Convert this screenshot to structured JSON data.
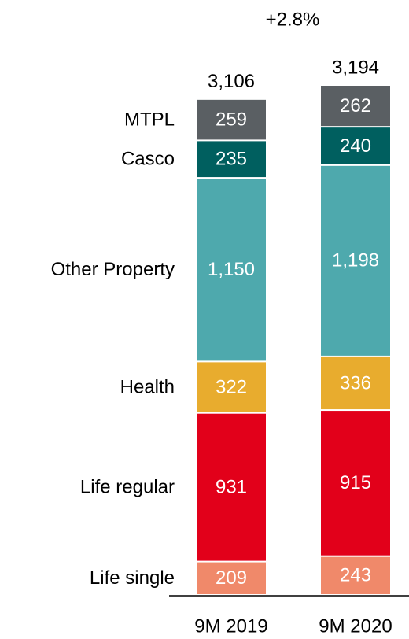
{
  "chart_data": {
    "type": "stacked_bar",
    "annotation": "+2.8%",
    "categories": [
      "9M 2019",
      "9M 2020"
    ],
    "series": [
      {
        "name": "Life single",
        "color": "#f0896a",
        "values": [
          209,
          243
        ]
      },
      {
        "name": "Life regular",
        "color": "#e2001a",
        "values": [
          931,
          915
        ]
      },
      {
        "name": "Health",
        "color": "#e8ac2e",
        "values": [
          322,
          336
        ]
      },
      {
        "name": "Other Property",
        "color": "#4ea9ad",
        "values": [
          1150,
          1198
        ],
        "value_labels": [
          "1,150",
          "1,198"
        ]
      },
      {
        "name": "Casco",
        "color": "#005f5f",
        "values": [
          235,
          240
        ]
      },
      {
        "name": "MTPL",
        "color": "#5a5f63",
        "values": [
          259,
          262
        ]
      }
    ],
    "totals": [
      3106,
      3194
    ],
    "total_labels": [
      "3,106",
      "3,194"
    ]
  }
}
